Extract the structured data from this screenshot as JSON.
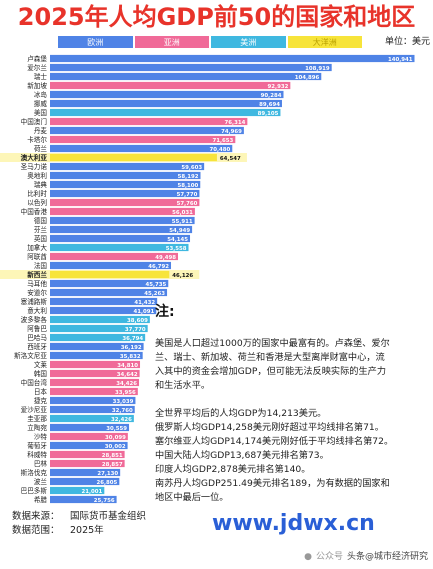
{
  "header": {
    "title": "2025年人均GDP前50的国家和地区",
    "unit": "单位：美元"
  },
  "legend": [
    {
      "label": "欧洲",
      "color": "#4f83e6"
    },
    {
      "label": "亚洲",
      "color": "#f06a98"
    },
    {
      "label": "美洲",
      "color": "#3fb8e0"
    },
    {
      "label": "大洋洲",
      "color": "#f7e43a"
    }
  ],
  "chart_data": {
    "type": "bar",
    "orientation": "horizontal",
    "categories": [
      "卢森堡",
      "爱尔兰",
      "瑞士",
      "新加坡",
      "冰岛",
      "挪威",
      "美国",
      "中国澳门",
      "丹麦",
      "卡塔尔",
      "荷兰",
      "澳大利亚",
      "圣马力诺",
      "奥地利",
      "瑞典",
      "比利时",
      "以色列",
      "中国香港",
      "德国",
      "芬兰",
      "英国",
      "加拿大",
      "阿联酋",
      "法国",
      "新西兰",
      "马耳他",
      "安道尔",
      "塞浦路斯",
      "意大利",
      "波多黎各",
      "阿鲁巴",
      "巴哈马",
      "西班牙",
      "斯洛文尼亚",
      "文莱",
      "韩国",
      "中国台湾",
      "日本",
      "捷克",
      "爱沙尼亚",
      "圭亚那",
      "立陶宛",
      "沙特",
      "葡萄牙",
      "科威特",
      "巴林",
      "斯洛伐克",
      "波兰",
      "巴巴多斯",
      "希腊"
    ],
    "values": [
      140941,
      108919,
      104896,
      92932,
      90284,
      89694,
      89105,
      76314,
      74969,
      71653,
      70480,
      64547,
      59603,
      58192,
      58100,
      57770,
      57760,
      56031,
      55911,
      54949,
      54145,
      53558,
      49498,
      46792,
      46126,
      45735,
      45263,
      41432,
      41091,
      38609,
      37770,
      36794,
      36192,
      35832,
      34810,
      34642,
      34426,
      33956,
      33039,
      32760,
      32426,
      30559,
      30099,
      30002,
      28851,
      28857,
      27130,
      26805,
      21001,
      25756
    ],
    "region": [
      "欧洲",
      "欧洲",
      "欧洲",
      "亚洲",
      "欧洲",
      "欧洲",
      "美洲",
      "亚洲",
      "欧洲",
      "亚洲",
      "欧洲",
      "大洋洲",
      "欧洲",
      "欧洲",
      "欧洲",
      "欧洲",
      "亚洲",
      "亚洲",
      "欧洲",
      "欧洲",
      "欧洲",
      "美洲",
      "亚洲",
      "欧洲",
      "大洋洲",
      "欧洲",
      "欧洲",
      "欧洲",
      "欧洲",
      "美洲",
      "美洲",
      "美洲",
      "欧洲",
      "欧洲",
      "亚洲",
      "亚洲",
      "亚洲",
      "亚洲",
      "欧洲",
      "欧洲",
      "美洲",
      "欧洲",
      "亚洲",
      "欧洲",
      "亚洲",
      "亚洲",
      "欧洲",
      "欧洲",
      "美洲",
      "欧洲"
    ],
    "value_labels": [
      "140,941",
      "108,919",
      "104,896",
      "92,932",
      "90,284",
      "89,694",
      "89,105",
      "76,314",
      "74,969",
      "71,653",
      "70,480",
      "64,547",
      "59,603",
      "58,192",
      "58,100",
      "57,770",
      "57,760",
      "56,031",
      "55,911",
      "54,949",
      "54,145",
      "53,558",
      "49,498",
      "46,792",
      "46,126",
      "45,735",
      "45,263",
      "41,432",
      "41,091",
      "38,609",
      "37,770",
      "36,794",
      "36,192",
      "35,832",
      "34,810",
      "34,642",
      "34,426",
      "33,956",
      "33,039",
      "32,760",
      "32,426",
      "30,559",
      "30,099",
      "30,002",
      "28,851",
      "28,857",
      "27,130",
      "26,805",
      "21,001",
      "25,756"
    ],
    "xlim": [
      0,
      145000
    ],
    "title": "2025年人均GDP前50的国家和地区",
    "xlabel": "",
    "ylabel": "",
    "legend_position": "top",
    "grid": false,
    "highlight_categories": [
      "澳大利亚",
      "新西兰"
    ]
  },
  "note": {
    "title": "注:",
    "paragraph1": [
      "美国是人口超过1000万的国家中最富有的。卢森堡、爱尔",
      "兰、瑞士、新加坡、荷兰和香港是大型离岸财富中心，流",
      "入其中的资金会增加GDP，但可能无法反映实际的生产力",
      "和生活水平。"
    ],
    "paragraph2": [
      "全世界平均后的人均GDP为14,213美元。",
      "俄罗斯人均GDP14,258美元刚好超过平均线排名第71。",
      "塞尔维亚人均GDP14,174美元刚好低于平均线排名第72。",
      "中国大陆人均GDP13,687美元排名第73。",
      "印度人均GDP2,878美元排名第140。",
      "南苏丹人均GDP251.49美元排名189，为有数据的国家和",
      "地区中最后一位。"
    ]
  },
  "footer": {
    "source_label": "数据来源：",
    "source_value": "国际货币基金组织",
    "range_label": "数据范围：",
    "range_value": "2025年"
  },
  "watermark": {
    "url": "www.jdwx.cn",
    "publisher": "公众号",
    "source": "头条@城市经济研究"
  }
}
